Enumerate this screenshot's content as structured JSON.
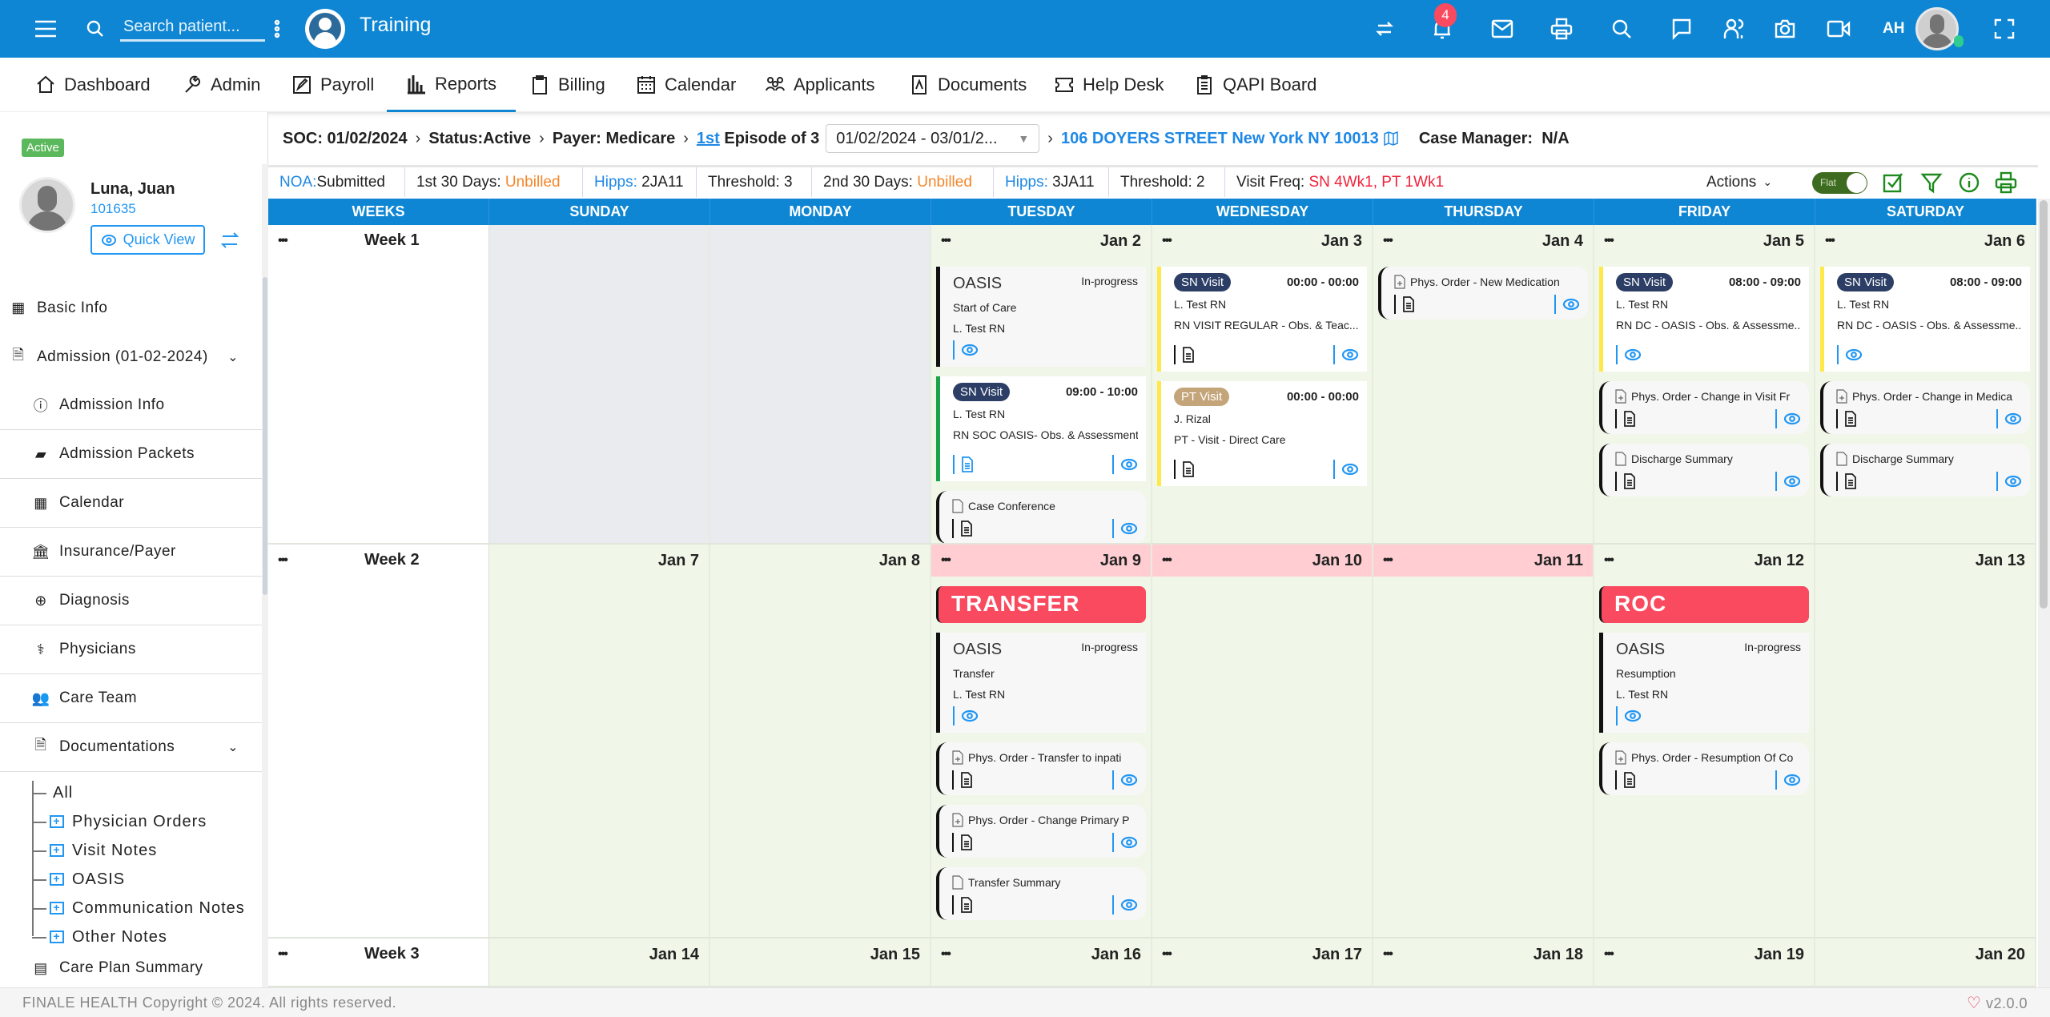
{
  "topbar": {
    "search_placeholder": "Search patient...",
    "org_name": "Training",
    "notification_count": "4",
    "user_initials": "AH",
    "icons": [
      "menu-icon",
      "search-icon",
      "kebab-icon",
      "org-logo-icon",
      "swap-icon",
      "bell-icon",
      "mail-icon",
      "printer-icon",
      "search-icon",
      "chat-icon",
      "users-icon",
      "camera-icon",
      "video-icon",
      "avatar",
      "fullscreen-icon"
    ]
  },
  "nav": [
    {
      "label": "Dashboard",
      "icon": "home-icon"
    },
    {
      "label": "Admin",
      "icon": "wrench-icon"
    },
    {
      "label": "Payroll",
      "icon": "edit-icon"
    },
    {
      "label": "Reports",
      "icon": "bar-chart-icon",
      "active": true
    },
    {
      "label": "Billing",
      "icon": "clipboard-icon"
    },
    {
      "label": "Calendar",
      "icon": "calendar-icon"
    },
    {
      "label": "Applicants",
      "icon": "people-icon"
    },
    {
      "label": "Documents",
      "icon": "pdf-icon"
    },
    {
      "label": "Help Desk",
      "icon": "ticket-icon"
    },
    {
      "label": "QAPI Board",
      "icon": "checklist-icon"
    }
  ],
  "patient": {
    "status": "Active",
    "name": "Luna, Juan",
    "id": "101635",
    "quick_view": "Quick View"
  },
  "sidebar": {
    "items": [
      {
        "label": "Basic Info",
        "icon": "building-icon",
        "level": 0
      },
      {
        "label": "Admission (01-02-2024)",
        "icon": "document-icon",
        "level": 0,
        "expanded": true
      },
      {
        "label": "Admission Info",
        "icon": "info-icon",
        "level": 1
      },
      {
        "label": "Admission Packets",
        "icon": "packets-icon",
        "level": 1
      },
      {
        "label": "Calendar",
        "icon": "calendar-icon",
        "level": 1
      },
      {
        "label": "Insurance/Payer",
        "icon": "bank-icon",
        "level": 1
      },
      {
        "label": "Diagnosis",
        "icon": "lifebuoy-icon",
        "level": 1
      },
      {
        "label": "Physicians",
        "icon": "stethoscope-icon",
        "level": 1
      },
      {
        "label": "Care Team",
        "icon": "team-icon",
        "level": 1
      },
      {
        "label": "Documentations",
        "icon": "document-icon",
        "level": 1,
        "expanded": true
      }
    ],
    "doc_tree": [
      "All",
      "Physician Orders",
      "Visit Notes",
      "OASIS",
      "Communication Notes",
      "Other Notes"
    ],
    "last_item": "Care Plan Summary"
  },
  "episode_bar": {
    "soc": "SOC: 01/02/2024",
    "status": "Status:Active",
    "payer": "Payer: Medicare",
    "episode_ordinal": "1st",
    "episode_rest": "Episode of 3",
    "episode_range": "01/02/2024 - 03/01/2...",
    "address": "106 DOYERS STREET New York NY 10013",
    "case_manager_label": "Case Manager:",
    "case_manager": "N/A"
  },
  "info_bar": {
    "cells": [
      {
        "label": "NOA:",
        "value": "Submitted",
        "label_color": "#1e88e5",
        "value_color": "#222"
      },
      {
        "label": "1st 30 Days: ",
        "value": "Unbilled",
        "label_color": "#222",
        "value_color": "#f5862a"
      },
      {
        "label": "Hipps: ",
        "value": "2JA11",
        "label_color": "#1e88e5",
        "value_color": "#222"
      },
      {
        "label": "Threshold: ",
        "value": "3",
        "label_color": "#222",
        "value_color": "#222"
      },
      {
        "label": "2nd 30 Days: ",
        "value": "Unbilled",
        "label_color": "#222",
        "value_color": "#f5862a"
      },
      {
        "label": "Hipps: ",
        "value": "3JA11",
        "label_color": "#1e88e5",
        "value_color": "#222"
      },
      {
        "label": "Threshold: ",
        "value": "2",
        "label_color": "#222",
        "value_color": "#222"
      },
      {
        "label": "Visit Freq: ",
        "value": "SN 4Wk1, PT 1Wk1",
        "label_color": "#222",
        "value_color": "#f0223a"
      }
    ],
    "actions_label": "Actions",
    "toggle_label": "Flat",
    "toggle_on": true
  },
  "calendar": {
    "columns": [
      "WEEKS",
      "SUNDAY",
      "MONDAY",
      "TUESDAY",
      "WEDNESDAY",
      "THURSDAY",
      "FRIDAY",
      "SATURDAY"
    ],
    "colors": {
      "sn_badge": "#2c3e66",
      "pt_badge": "#c4a57a",
      "banner": "#f94a5f",
      "highlight_day": "#ffcdd2",
      "day_bg": "#f0f7e8"
    },
    "weeks": [
      {
        "label": "Week 1",
        "days": [
          {
            "date": "",
            "disabled": true,
            "menu": false,
            "cards": []
          },
          {
            "date": "",
            "disabled": true,
            "menu": false,
            "cards": []
          },
          {
            "date": "Jan 2",
            "menu": true,
            "cards": [
              {
                "kind": "oasis",
                "title": "OASIS",
                "status": "In-progress",
                "type": "Start of Care",
                "clinician": "L. Test RN"
              },
              {
                "kind": "visit",
                "badge": "SN Visit",
                "badge_color": "#2c3e66",
                "time": "09:00 - 10:00",
                "clinician": "L. Test RN",
                "desc": "RN SOC OASIS- Obs. & Assessment",
                "accent": "#1aa34a",
                "has_doc": true,
                "doc_color": "#2196f3"
              },
              {
                "kind": "doc",
                "title": "Case Conference",
                "icon": "file-icon"
              }
            ]
          },
          {
            "date": "Jan 3",
            "menu": true,
            "cards": [
              {
                "kind": "visit",
                "badge": "SN Visit",
                "badge_color": "#2c3e66",
                "time": "00:00 - 00:00",
                "clinician": "L. Test RN",
                "desc": "RN VISIT REGULAR - Obs. & Teac...",
                "accent": "#ffe94a",
                "has_doc": true,
                "doc_color": "#222"
              },
              {
                "kind": "visit",
                "badge": "PT Visit",
                "badge_color": "#c4a57a",
                "time": "00:00 - 00:00",
                "clinician": "J. Rizal",
                "desc": "PT - Visit - Direct Care",
                "accent": "#ffe94a",
                "has_doc": true,
                "doc_color": "#222"
              }
            ]
          },
          {
            "date": "Jan 4",
            "menu": true,
            "cards": [
              {
                "kind": "doc",
                "title": "Phys. Order - New Medication",
                "icon": "file-plus-icon"
              }
            ]
          },
          {
            "date": "Jan 5",
            "menu": true,
            "cards": [
              {
                "kind": "visit",
                "badge": "SN Visit",
                "badge_color": "#2c3e66",
                "time": "08:00 - 09:00",
                "clinician": "L. Test RN",
                "desc": "RN DC - OASIS - Obs. & Assessme...",
                "accent": "#ffe94a",
                "has_doc": false
              },
              {
                "kind": "doc",
                "title": "Phys. Order - Change in Visit Fr",
                "icon": "file-plus-icon"
              },
              {
                "kind": "doc",
                "title": "Discharge Summary",
                "icon": "file-icon"
              }
            ]
          },
          {
            "date": "Jan 6",
            "menu": true,
            "cards": [
              {
                "kind": "visit",
                "badge": "SN Visit",
                "badge_color": "#2c3e66",
                "time": "08:00 - 09:00",
                "clinician": "L. Test RN",
                "desc": "RN DC - OASIS - Obs. & Assessme...",
                "accent": "#ffe94a",
                "has_doc": false
              },
              {
                "kind": "doc",
                "title": "Phys. Order - Change in Medica",
                "icon": "file-plus-icon"
              },
              {
                "kind": "doc",
                "title": "Discharge Summary",
                "icon": "file-icon"
              }
            ]
          }
        ]
      },
      {
        "label": "Week 2",
        "days": [
          {
            "date": "Jan 7",
            "menu": false,
            "cards": []
          },
          {
            "date": "Jan 8",
            "menu": false,
            "cards": []
          },
          {
            "date": "Jan 9",
            "menu": true,
            "highlight": true,
            "cards": [
              {
                "kind": "banner",
                "title": "TRANSFER"
              },
              {
                "kind": "oasis",
                "title": "OASIS",
                "status": "In-progress",
                "type": "Transfer",
                "clinician": "L. Test RN"
              },
              {
                "kind": "doc",
                "title": "Phys. Order - Transfer to inpati",
                "icon": "file-plus-icon"
              },
              {
                "kind": "doc",
                "title": "Phys. Order - Change Primary P",
                "icon": "file-plus-icon"
              },
              {
                "kind": "doc",
                "title": "Transfer Summary",
                "icon": "file-icon"
              }
            ]
          },
          {
            "date": "Jan 10",
            "menu": true,
            "highlight": true,
            "cards": []
          },
          {
            "date": "Jan 11",
            "menu": true,
            "highlight": true,
            "cards": []
          },
          {
            "date": "Jan 12",
            "menu": true,
            "cards": [
              {
                "kind": "banner",
                "title": "ROC"
              },
              {
                "kind": "oasis",
                "title": "OASIS",
                "status": "In-progress",
                "type": "Resumption",
                "clinician": "L. Test RN"
              },
              {
                "kind": "doc",
                "title": "Phys. Order - Resumption Of Co",
                "icon": "file-plus-icon"
              }
            ]
          },
          {
            "date": "Jan 13",
            "menu": false,
            "cards": []
          }
        ]
      },
      {
        "label": "Week 3",
        "days": [
          {
            "date": "Jan 14",
            "menu": false,
            "cards": []
          },
          {
            "date": "Jan 15",
            "menu": false,
            "cards": []
          },
          {
            "date": "Jan 16",
            "menu": true,
            "cards": []
          },
          {
            "date": "Jan 17",
            "menu": true,
            "cards": []
          },
          {
            "date": "Jan 18",
            "menu": true,
            "cards": []
          },
          {
            "date": "Jan 19",
            "menu": true,
            "cards": []
          },
          {
            "date": "Jan 20",
            "menu": false,
            "cards": []
          }
        ]
      }
    ]
  },
  "footer": {
    "copyright": "FINALE HEALTH Copyright © 2024. All rights reserved.",
    "version": "v2.0.0"
  }
}
